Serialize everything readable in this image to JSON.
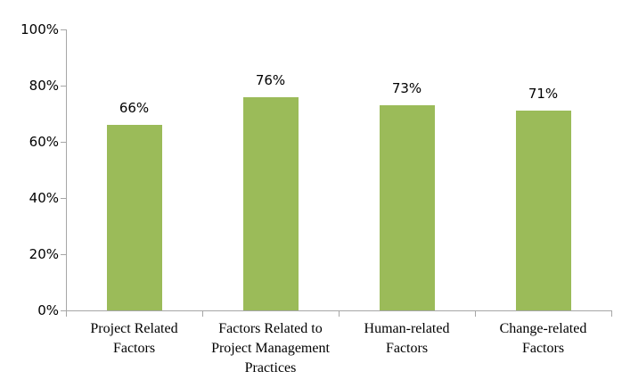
{
  "chart_data": {
    "type": "bar",
    "title": "",
    "categories": [
      "Project Related Factors",
      "Factors Related to Project Management Practices",
      "Human-related Factors",
      "Change-related Factors"
    ],
    "category_lines": [
      [
        "Project Related",
        "Factors"
      ],
      [
        "Factors Related to",
        "Project Management",
        "Practices"
      ],
      [
        "Human-related",
        "Factors"
      ],
      [
        "Change-related",
        "Factors"
      ]
    ],
    "values": [
      66,
      76,
      73,
      71
    ],
    "value_labels": [
      "66%",
      "76%",
      "73%",
      "71%"
    ],
    "y_ticks": [
      {
        "label": "100%",
        "value": 100
      },
      {
        "label": "80%",
        "value": 80
      },
      {
        "label": "60%",
        "value": 60
      },
      {
        "label": "40%",
        "value": 40
      },
      {
        "label": "20%",
        "value": 20
      },
      {
        "label": "0%",
        "value": 0
      }
    ],
    "xlabel": "",
    "ylabel": "",
    "ylim": [
      0,
      100
    ],
    "grid": false,
    "legend": false,
    "bar_color": "#9BBB59",
    "axis_color": "#A6A6A6",
    "text_color": "#000000",
    "background_color": "#FFFFFF"
  }
}
